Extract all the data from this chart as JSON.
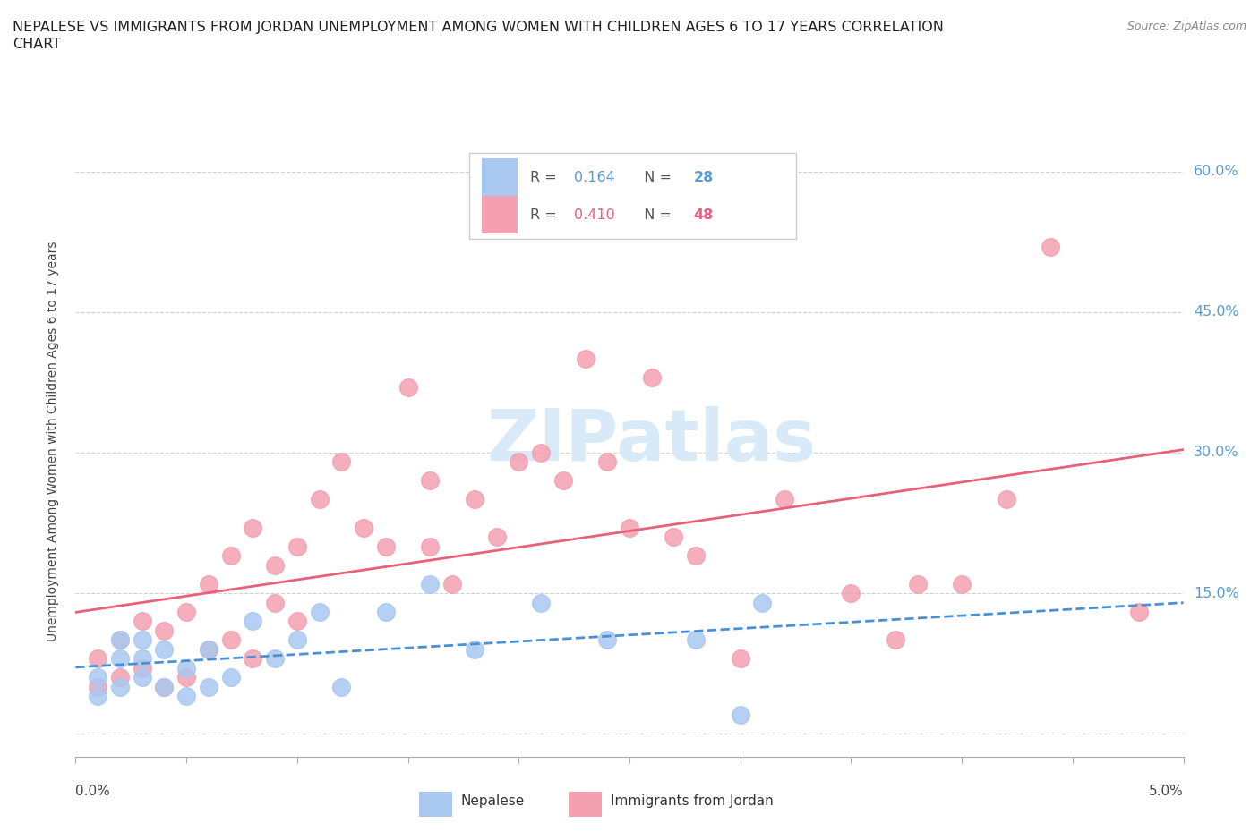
{
  "title_line1": "NEPALESE VS IMMIGRANTS FROM JORDAN UNEMPLOYMENT AMONG WOMEN WITH CHILDREN AGES 6 TO 17 YEARS CORRELATION",
  "title_line2": "CHART",
  "source": "Source: ZipAtlas.com",
  "ylabel": "Unemployment Among Women with Children Ages 6 to 17 years",
  "xlim": [
    0.0,
    0.05
  ],
  "ylim": [
    -0.025,
    0.65
  ],
  "nepalese_R": "0.164",
  "nepalese_N": "28",
  "jordan_R": "0.410",
  "jordan_N": "48",
  "nepalese_color": "#a8c8f0",
  "jordan_color": "#f4a0b0",
  "nepalese_line_color": "#4a90d9",
  "jordan_line_color": "#e8607a",
  "watermark_color": "#d8eaf8",
  "background_color": "#ffffff",
  "nepalese_x": [
    0.001,
    0.001,
    0.002,
    0.002,
    0.002,
    0.003,
    0.003,
    0.003,
    0.004,
    0.004,
    0.005,
    0.005,
    0.006,
    0.006,
    0.007,
    0.008,
    0.009,
    0.01,
    0.011,
    0.012,
    0.014,
    0.016,
    0.018,
    0.021,
    0.024,
    0.028,
    0.03,
    0.031
  ],
  "nepalese_y": [
    0.06,
    0.04,
    0.05,
    0.08,
    0.1,
    0.06,
    0.08,
    0.1,
    0.05,
    0.09,
    0.04,
    0.07,
    0.05,
    0.09,
    0.06,
    0.12,
    0.08,
    0.1,
    0.13,
    0.05,
    0.13,
    0.16,
    0.09,
    0.14,
    0.1,
    0.1,
    0.02,
    0.14
  ],
  "jordan_x": [
    0.001,
    0.001,
    0.002,
    0.002,
    0.003,
    0.003,
    0.004,
    0.004,
    0.005,
    0.005,
    0.006,
    0.006,
    0.007,
    0.007,
    0.008,
    0.008,
    0.009,
    0.009,
    0.01,
    0.01,
    0.011,
    0.012,
    0.013,
    0.014,
    0.015,
    0.016,
    0.016,
    0.017,
    0.018,
    0.019,
    0.02,
    0.021,
    0.022,
    0.023,
    0.024,
    0.025,
    0.026,
    0.027,
    0.028,
    0.03,
    0.032,
    0.035,
    0.037,
    0.038,
    0.04,
    0.042,
    0.044,
    0.048
  ],
  "jordan_y": [
    0.05,
    0.08,
    0.06,
    0.1,
    0.07,
    0.12,
    0.05,
    0.11,
    0.06,
    0.13,
    0.09,
    0.16,
    0.1,
    0.19,
    0.08,
    0.22,
    0.14,
    0.18,
    0.12,
    0.2,
    0.25,
    0.29,
    0.22,
    0.2,
    0.37,
    0.2,
    0.27,
    0.16,
    0.25,
    0.21,
    0.29,
    0.3,
    0.27,
    0.4,
    0.29,
    0.22,
    0.38,
    0.21,
    0.19,
    0.08,
    0.25,
    0.15,
    0.1,
    0.16,
    0.16,
    0.25,
    0.52,
    0.13
  ],
  "right_ytick_vals": [
    0.0,
    0.15,
    0.3,
    0.45,
    0.6
  ],
  "right_yticklabels": [
    "",
    "15.0%",
    "30.0%",
    "45.0%",
    "60.0%"
  ]
}
